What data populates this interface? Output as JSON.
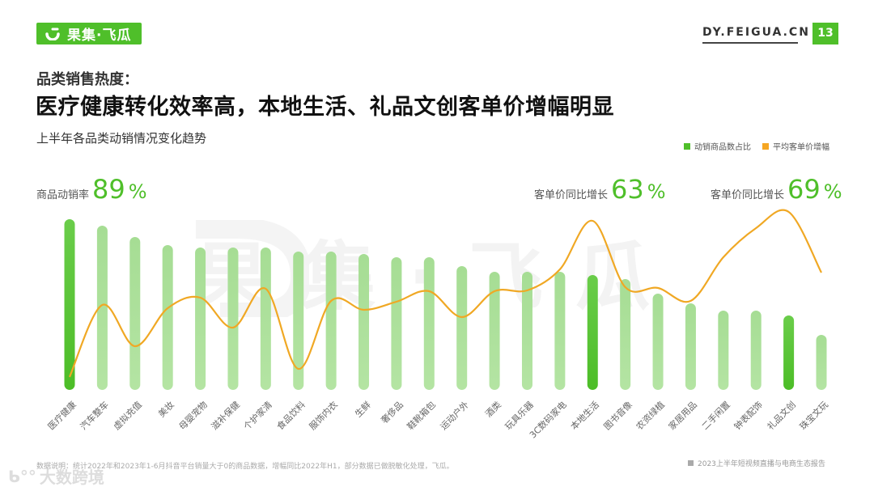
{
  "header": {
    "brand": "果集·飞瓜",
    "url": "DY.FEIGUA.CN",
    "page_number": "13",
    "accent_color": "#4fbf2a"
  },
  "titles": {
    "kicker": "品类销售热度：",
    "main": "医疗健康转化效率高，本地生活、礼品文创客单价增幅明显",
    "chart_title": "上半年各品类动销情况变化趋势"
  },
  "legend": [
    {
      "label": "动销商品数占比",
      "color": "#4fbf2a"
    },
    {
      "label": "平均客单价增幅",
      "color": "#f5a623"
    }
  ],
  "callouts": [
    {
      "label": "商品动销率",
      "value": "89",
      "unit": "%"
    },
    {
      "label": "客单价同比增长",
      "value": "63",
      "unit": "%"
    },
    {
      "label": "客单价同比增长",
      "value": "69",
      "unit": "%"
    }
  ],
  "footer": {
    "note": "数据说明：统计2022年和2023年1-6月抖音平台销量大于0的商品数据，增幅同比2022年H1，部分数据已做脱敏化处理，飞瓜。",
    "source": "2023上半年短视频直播与电商生态报告",
    "corner_watermark": "大数跨境"
  },
  "watermark_text": "果集·飞瓜",
  "chart_data": {
    "type": "bar+line",
    "title": "上半年各品类动销情况变化趋势",
    "xlabel": "",
    "ylabel": "",
    "grid": false,
    "legend_position": "top-right",
    "categories": [
      "医疗健康",
      "汽车整车",
      "虚拟充值",
      "美妆",
      "母婴宠物",
      "滋补保健",
      "个护家清",
      "食品饮料",
      "服饰内衣",
      "生鲜",
      "奢侈品",
      "鞋靴箱包",
      "运动户外",
      "酒类",
      "玩具乐器",
      "3C数码家电",
      "本地生活",
      "图书音像",
      "农资绿植",
      "家居用品",
      "二手闲置",
      "钟表配饰",
      "礼品文创",
      "珠宝文玩"
    ],
    "highlighted": [
      "医疗健康",
      "本地生活",
      "礼品文创"
    ],
    "series": [
      {
        "name": "动销商品数占比",
        "type": "bar",
        "unit": "relative height (px, estimated)",
        "values": [
          211,
          203,
          189,
          179,
          176,
          176,
          176,
          171,
          171,
          168,
          164,
          164,
          153,
          146,
          146,
          146,
          142,
          137,
          119,
          107,
          98,
          98,
          92,
          68
        ]
      },
      {
        "name": "平均客单价增幅",
        "type": "line",
        "unit": "pixel y (estimated)",
        "values": [
          466,
          377,
          428,
          381,
          368,
          405,
          357,
          456,
          372,
          383,
          373,
          360,
          392,
          360,
          359,
          333,
          273,
          355,
          356,
          372,
          318,
          282,
          262,
          337
        ]
      }
    ],
    "annotations": [
      {
        "category": "医疗健康",
        "text": "商品动销率 89%"
      },
      {
        "category": "本地生活",
        "text": "客单价同比增长 63%"
      },
      {
        "category": "礼品文创",
        "text": "客单价同比增长 69%"
      }
    ]
  }
}
